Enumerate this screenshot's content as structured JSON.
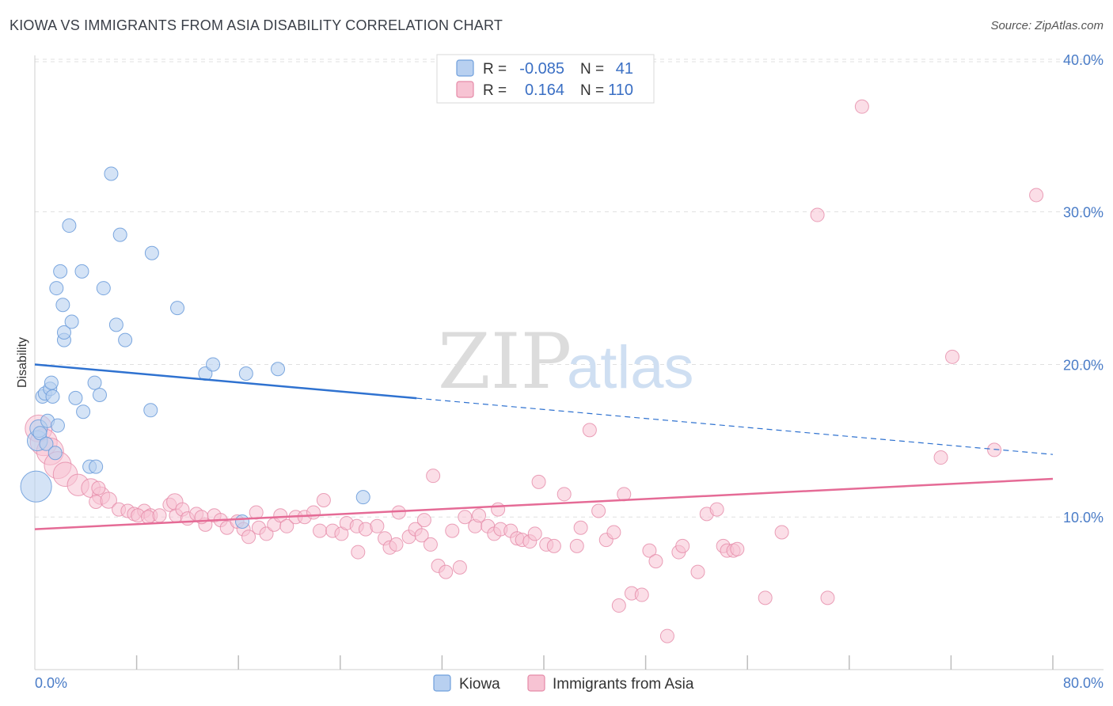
{
  "title": "KIOWA VS IMMIGRANTS FROM ASIA DISABILITY CORRELATION CHART",
  "source": "Source: ZipAtlas.com",
  "watermark": {
    "zip": "ZIP",
    "atlas": "atlas"
  },
  "stats": {
    "kiowa": {
      "r_label": "R =",
      "r": "-0.085",
      "n_label": "N =",
      "n": "41"
    },
    "asia": {
      "r_label": "R =",
      "r": "0.164",
      "n_label": "N =",
      "n": "110"
    }
  },
  "legend": {
    "kiowa": "Kiowa",
    "asia": "Immigrants from Asia"
  },
  "colors": {
    "kiowa_fill": "#b8d0f0",
    "kiowa_stroke": "#6f9fdc",
    "kiowa_line": "#2f72d0",
    "asia_fill": "#f7c3d3",
    "asia_stroke": "#e58aa8",
    "asia_line": "#e56b96",
    "tick_text": "#4a7cc7",
    "grid": "#e0e0e0"
  },
  "chart_data": {
    "type": "scatter",
    "title": "KIOWA VS IMMIGRANTS FROM ASIA DISABILITY CORRELATION CHART",
    "xlabel": "",
    "ylabel": "Disability",
    "xlim": [
      0,
      80
    ],
    "ylim": [
      0,
      41.5
    ],
    "x_tick_labels": [
      "0.0%",
      "80.0%"
    ],
    "y_ticks": [
      10,
      20,
      30,
      40
    ],
    "y_tick_labels": [
      "10.0%",
      "20.0%",
      "30.0%",
      "40.0%"
    ],
    "series": [
      {
        "name": "Kiowa",
        "r": -0.085,
        "n": 41,
        "trend": {
          "x0": 0,
          "y0": 20.0,
          "x_solid_end": 30,
          "x1": 80,
          "y1": 14.1
        },
        "points": [
          [
            0.1,
            12.0,
            2.3
          ],
          [
            0.2,
            15.0,
            1.5
          ],
          [
            0.3,
            15.8,
            1.3
          ],
          [
            0.4,
            15.5,
            1.0
          ],
          [
            0.6,
            17.9,
            1.0
          ],
          [
            0.8,
            18.1,
            1.0
          ],
          [
            0.9,
            14.8,
            1.0
          ],
          [
            1.0,
            16.3,
            1.0
          ],
          [
            1.2,
            18.4,
            1.0
          ],
          [
            1.3,
            18.8,
            1.0
          ],
          [
            1.4,
            17.9,
            1.0
          ],
          [
            1.6,
            14.2,
            1.0
          ],
          [
            1.7,
            25.0,
            1.0
          ],
          [
            1.8,
            16.0,
            1.0
          ],
          [
            2.0,
            26.1,
            1.0
          ],
          [
            2.2,
            23.9,
            1.0
          ],
          [
            2.3,
            21.6,
            1.0
          ],
          [
            2.3,
            22.1,
            1.0
          ],
          [
            2.7,
            29.1,
            1.0
          ],
          [
            2.9,
            22.8,
            1.0
          ],
          [
            3.2,
            17.8,
            1.0
          ],
          [
            3.7,
            26.1,
            1.0
          ],
          [
            3.8,
            16.9,
            1.0
          ],
          [
            4.3,
            13.3,
            1.0
          ],
          [
            4.7,
            18.8,
            1.0
          ],
          [
            4.8,
            13.3,
            1.0
          ],
          [
            5.1,
            18.0,
            1.0
          ],
          [
            5.4,
            25.0,
            1.0
          ],
          [
            6.0,
            32.5,
            1.0
          ],
          [
            6.4,
            22.6,
            1.0
          ],
          [
            6.7,
            28.5,
            1.0
          ],
          [
            7.1,
            21.6,
            1.0
          ],
          [
            9.2,
            27.3,
            1.0
          ],
          [
            9.1,
            17.0,
            1.0
          ],
          [
            11.2,
            23.7,
            1.0
          ],
          [
            13.4,
            19.4,
            1.0
          ],
          [
            14.0,
            20.0,
            1.0
          ],
          [
            16.6,
            19.4,
            1.0
          ],
          [
            16.3,
            9.7,
            1.0
          ],
          [
            19.1,
            19.7,
            1.0
          ],
          [
            25.8,
            11.3,
            1.0
          ]
        ]
      },
      {
        "name": "Immigrants from Asia",
        "r": 0.164,
        "n": 110,
        "trend": {
          "x0": 0,
          "y0": 9.2,
          "x1": 80,
          "y1": 12.5
        },
        "points": [
          [
            0.3,
            15.8,
            2.0
          ],
          [
            0.7,
            14.9,
            2.0
          ],
          [
            1.2,
            14.3,
            2.0
          ],
          [
            1.8,
            13.4,
            2.0
          ],
          [
            2.4,
            12.8,
            1.8
          ],
          [
            3.4,
            12.1,
            1.6
          ],
          [
            4.4,
            11.9,
            1.4
          ],
          [
            5.2,
            11.4,
            1.3
          ],
          [
            4.8,
            11.0,
            1.0
          ],
          [
            5.8,
            11.1,
            1.2
          ],
          [
            5.0,
            11.9,
            1.0
          ],
          [
            6.6,
            10.5,
            1.0
          ],
          [
            7.3,
            10.4,
            1.0
          ],
          [
            7.8,
            10.2,
            1.0
          ],
          [
            8.6,
            10.4,
            1.0
          ],
          [
            8.1,
            10.1,
            1.0
          ],
          [
            9.1,
            10.1,
            1.0
          ],
          [
            8.9,
            10.0,
            1.0
          ],
          [
            9.8,
            10.1,
            1.0
          ],
          [
            10.6,
            10.8,
            1.0
          ],
          [
            11.1,
            10.1,
            1.0
          ],
          [
            11.0,
            11.0,
            1.2
          ],
          [
            11.6,
            10.5,
            1.0
          ],
          [
            12.0,
            9.9,
            1.0
          ],
          [
            12.7,
            10.2,
            1.0
          ],
          [
            13.4,
            9.5,
            1.0
          ],
          [
            13.1,
            10.0,
            1.0
          ],
          [
            14.1,
            10.1,
            1.0
          ],
          [
            14.6,
            9.8,
            1.0
          ],
          [
            15.1,
            9.3,
            1.0
          ],
          [
            15.9,
            9.7,
            1.0
          ],
          [
            16.4,
            9.2,
            1.0
          ],
          [
            16.8,
            8.7,
            1.0
          ],
          [
            17.4,
            10.3,
            1.0
          ],
          [
            17.6,
            9.3,
            1.0
          ],
          [
            18.2,
            8.9,
            1.0
          ],
          [
            18.8,
            9.5,
            1.0
          ],
          [
            19.3,
            10.1,
            1.0
          ],
          [
            19.8,
            9.4,
            1.0
          ],
          [
            20.5,
            10.0,
            1.0
          ],
          [
            21.2,
            10.0,
            1.0
          ],
          [
            21.9,
            10.3,
            1.0
          ],
          [
            22.4,
            9.1,
            1.0
          ],
          [
            22.7,
            11.1,
            1.0
          ],
          [
            23.4,
            9.1,
            1.0
          ],
          [
            24.1,
            8.9,
            1.0
          ],
          [
            24.5,
            9.6,
            1.0
          ],
          [
            25.3,
            9.4,
            1.0
          ],
          [
            25.4,
            7.7,
            1.0
          ],
          [
            26.0,
            9.2,
            1.0
          ],
          [
            26.9,
            9.4,
            1.0
          ],
          [
            27.5,
            8.6,
            1.0
          ],
          [
            27.9,
            8.0,
            1.0
          ],
          [
            28.4,
            8.2,
            1.0
          ],
          [
            28.6,
            10.3,
            1.0
          ],
          [
            29.4,
            8.7,
            1.0
          ],
          [
            29.9,
            9.2,
            1.0
          ],
          [
            30.4,
            8.8,
            1.0
          ],
          [
            30.6,
            9.8,
            1.0
          ],
          [
            31.1,
            8.2,
            1.0
          ],
          [
            31.3,
            12.7,
            1.0
          ],
          [
            31.7,
            6.8,
            1.0
          ],
          [
            32.3,
            6.4,
            1.0
          ],
          [
            32.8,
            9.1,
            1.0
          ],
          [
            33.4,
            6.7,
            1.0
          ],
          [
            33.8,
            10.0,
            1.0
          ],
          [
            34.6,
            9.4,
            1.0
          ],
          [
            34.9,
            10.1,
            1.0
          ],
          [
            35.6,
            9.4,
            1.0
          ],
          [
            36.1,
            8.9,
            1.0
          ],
          [
            36.4,
            10.5,
            1.0
          ],
          [
            36.6,
            9.2,
            1.0
          ],
          [
            37.4,
            9.1,
            1.0
          ],
          [
            37.9,
            8.6,
            1.0
          ],
          [
            38.3,
            8.5,
            1.0
          ],
          [
            38.9,
            8.4,
            1.0
          ],
          [
            39.3,
            8.9,
            1.0
          ],
          [
            39.6,
            12.3,
            1.0
          ],
          [
            40.2,
            8.2,
            1.0
          ],
          [
            40.8,
            8.1,
            1.0
          ],
          [
            41.6,
            11.5,
            1.0
          ],
          [
            42.6,
            8.1,
            1.0
          ],
          [
            42.9,
            9.3,
            1.0
          ],
          [
            43.6,
            15.7,
            1.0
          ],
          [
            44.3,
            10.4,
            1.0
          ],
          [
            44.9,
            8.5,
            1.0
          ],
          [
            45.5,
            9.0,
            1.0
          ],
          [
            45.9,
            4.2,
            1.0
          ],
          [
            46.3,
            11.5,
            1.0
          ],
          [
            46.9,
            5.0,
            1.0
          ],
          [
            47.7,
            4.9,
            1.0
          ],
          [
            48.3,
            7.8,
            1.0
          ],
          [
            48.8,
            7.1,
            1.0
          ],
          [
            49.7,
            2.2,
            1.0
          ],
          [
            50.6,
            7.7,
            1.0
          ],
          [
            50.9,
            8.1,
            1.0
          ],
          [
            52.1,
            6.4,
            1.0
          ],
          [
            52.8,
            10.2,
            1.0
          ],
          [
            53.6,
            10.5,
            1.0
          ],
          [
            54.1,
            8.1,
            1.0
          ],
          [
            54.4,
            7.8,
            1.0
          ],
          [
            54.9,
            7.8,
            1.0
          ],
          [
            55.2,
            7.9,
            1.0
          ],
          [
            57.4,
            4.7,
            1.0
          ],
          [
            58.7,
            9.0,
            1.0
          ],
          [
            61.5,
            29.8,
            1.0
          ],
          [
            62.3,
            4.7,
            1.0
          ],
          [
            65.0,
            36.9,
            1.0
          ],
          [
            71.2,
            13.9,
            1.0
          ],
          [
            72.1,
            20.5,
            1.0
          ],
          [
            75.4,
            14.4,
            1.0
          ],
          [
            78.7,
            31.1,
            1.0
          ]
        ]
      }
    ]
  }
}
